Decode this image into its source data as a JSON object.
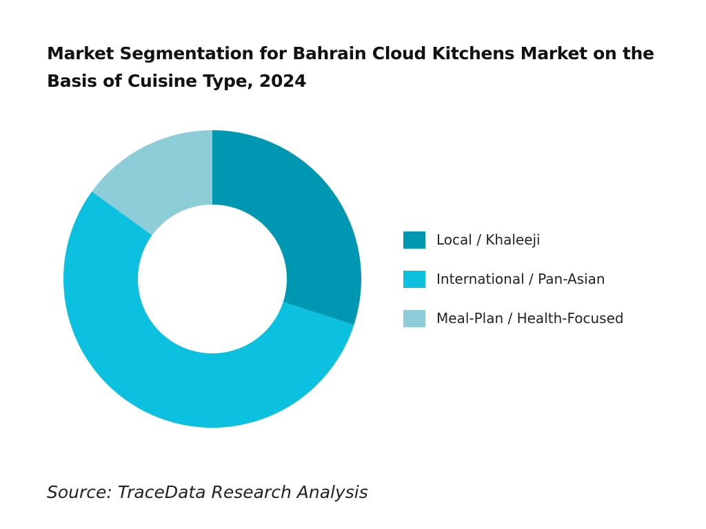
{
  "chart_data": {
    "type": "pie",
    "title": "Market Segmentation for Bahrain Cloud Kitchens Market on the Basis of Cuisine Type, 2024",
    "categories": [
      "Local / Khaleeji",
      "International / Pan-Asian",
      "Meal-Plan / Health-Focused"
    ],
    "values": [
      30,
      55,
      15
    ],
    "colors": [
      "#0097b2",
      "#0cc0df",
      "#8ccdd8"
    ],
    "legend_position": "right",
    "donut": true
  },
  "source": "Source: TraceData Research Analysis"
}
